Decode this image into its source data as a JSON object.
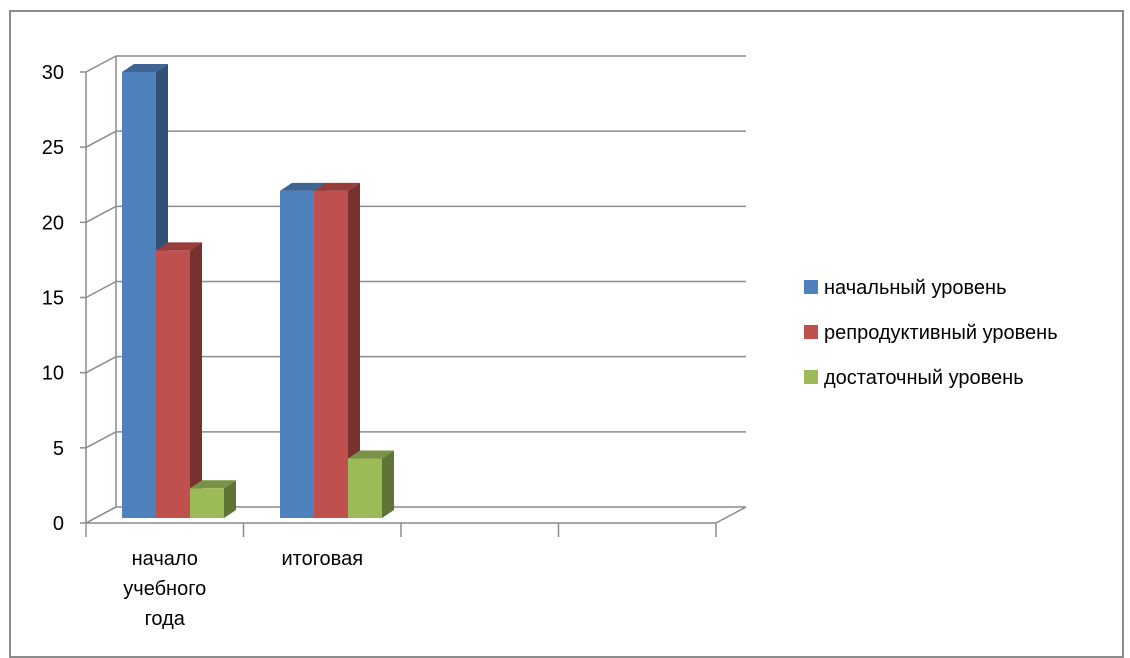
{
  "chart_data": {
    "type": "bar",
    "style": "3d-clustered-column",
    "categories": [
      [
        "начало",
        "учебного",
        "года"
      ],
      [
        "итоговая"
      ],
      [
        ""
      ],
      [
        ""
      ]
    ],
    "series": [
      {
        "name": "начальный уровень",
        "values": [
          30,
          22,
          null,
          null
        ],
        "color": "#4f81bd"
      },
      {
        "name": "репродуктивный уровень",
        "values": [
          18,
          22,
          null,
          null
        ],
        "color": "#c0504d"
      },
      {
        "name": "достаточный уровень",
        "values": [
          2,
          4,
          null,
          null
        ],
        "color": "#9bbb59"
      }
    ],
    "yticks": [
      0,
      5,
      10,
      15,
      20,
      25,
      30
    ],
    "ylim": [
      0,
      30
    ],
    "grid": true,
    "legend_position": "right"
  }
}
